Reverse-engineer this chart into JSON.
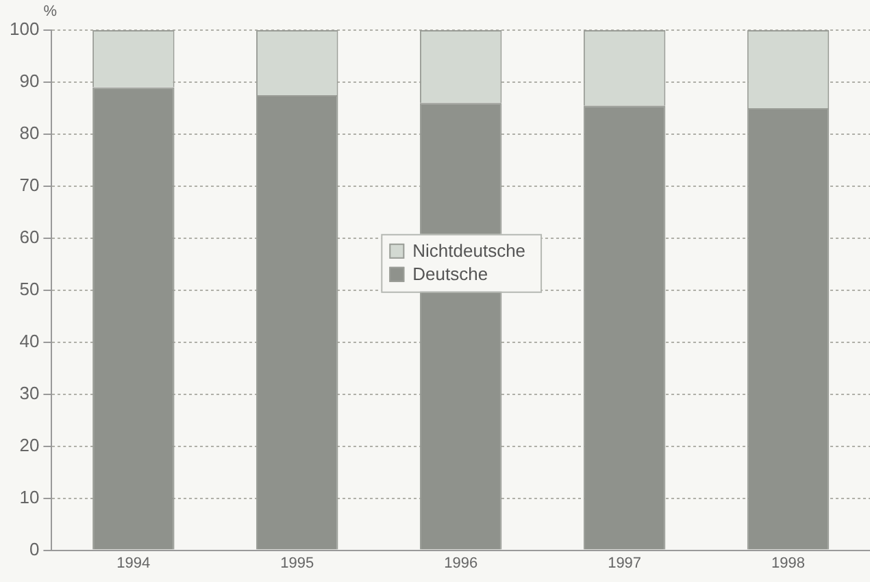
{
  "chart_data": {
    "type": "bar",
    "stacked": true,
    "ylabel": "%",
    "categories": [
      "1994",
      "1995",
      "1996",
      "1997",
      "1998"
    ],
    "series": [
      {
        "name": "Deutsche",
        "color": "#8f928c",
        "values": [
          89,
          87.5,
          86,
          85.5,
          85
        ]
      },
      {
        "name": "Nichtdeutsche",
        "color": "#d3d9d2",
        "values": [
          11,
          12.5,
          14,
          14.5,
          15
        ]
      }
    ],
    "ylim": [
      0,
      100
    ],
    "yticks": [
      0,
      10,
      20,
      30,
      40,
      50,
      60,
      70,
      80,
      90,
      100
    ],
    "grid": "y",
    "legend": "center"
  }
}
